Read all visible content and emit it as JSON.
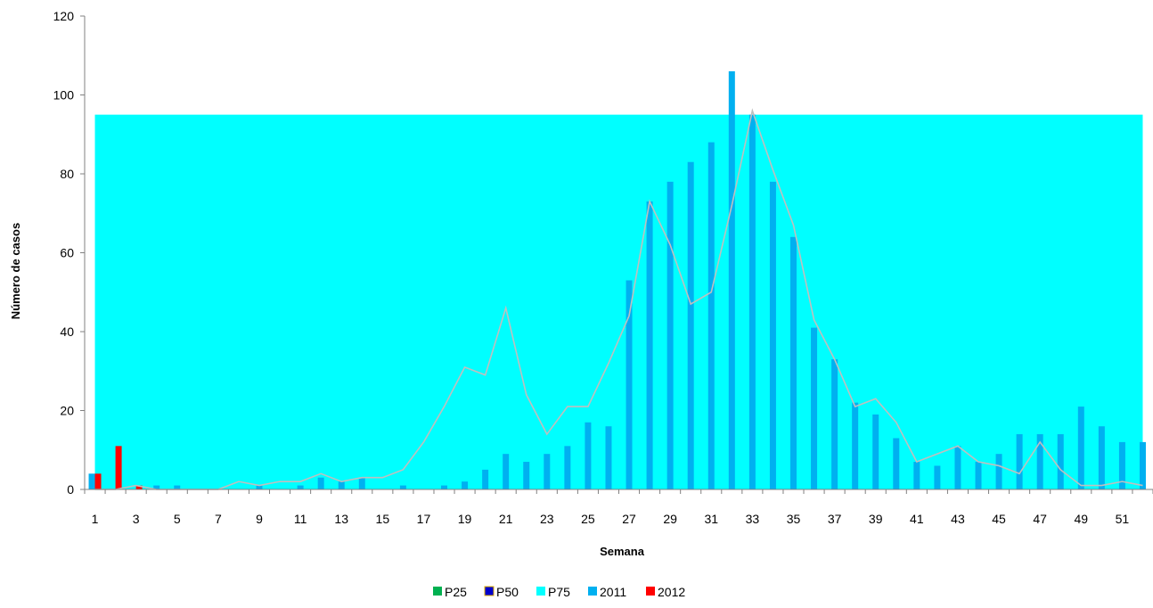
{
  "chart_data": {
    "type": "bar",
    "title": "",
    "xlabel": "Semana",
    "ylabel": "Número de casos",
    "ylim": [
      0,
      120
    ],
    "yticks": [
      0,
      20,
      40,
      60,
      80,
      100,
      120
    ],
    "x": [
      1,
      2,
      3,
      4,
      5,
      6,
      7,
      8,
      9,
      10,
      11,
      12,
      13,
      14,
      15,
      16,
      17,
      18,
      19,
      20,
      21,
      22,
      23,
      24,
      25,
      26,
      27,
      28,
      29,
      30,
      31,
      32,
      33,
      34,
      35,
      36,
      37,
      38,
      39,
      40,
      41,
      42,
      43,
      44,
      45,
      46,
      47,
      48,
      49,
      50,
      51,
      52
    ],
    "xtick_labels": [
      "1",
      "3",
      "5",
      "7",
      "9",
      "11",
      "13",
      "15",
      "17",
      "19",
      "21",
      "23",
      "25",
      "27",
      "29",
      "31",
      "33",
      "35",
      "37",
      "39",
      "41",
      "43",
      "45",
      "47",
      "49",
      "51"
    ],
    "grid": false,
    "legend_position": "bottom",
    "colors": {
      "P25": "#00B050",
      "P50": "#0000CC",
      "P75": "#00FFFF",
      "2011": "#00B0F0",
      "2012": "#FF0000",
      "line": "#BFBFBF"
    },
    "series": [
      {
        "name": "P25",
        "kind": "area",
        "values": [
          0,
          0,
          0,
          0,
          0,
          0,
          0,
          0,
          0,
          0,
          0,
          0,
          0,
          0,
          0,
          0,
          0,
          0,
          0,
          0,
          0,
          0,
          0,
          0,
          0,
          0,
          0,
          0,
          0,
          0,
          0,
          0,
          0,
          0,
          0,
          0,
          0,
          0,
          0,
          0,
          0,
          0,
          0,
          0,
          0,
          0,
          0,
          0,
          0,
          0,
          0,
          0
        ]
      },
      {
        "name": "P50",
        "kind": "area",
        "values": [
          0,
          0,
          0,
          0,
          0,
          0,
          0,
          0,
          0,
          0,
          0,
          0,
          0,
          0,
          0,
          0,
          0,
          0,
          0,
          0,
          0,
          0,
          0,
          0,
          0,
          0,
          0,
          0,
          0,
          0,
          0,
          0,
          0,
          0,
          0,
          0,
          0,
          0,
          0,
          0,
          0,
          0,
          0,
          0,
          0,
          0,
          0,
          0,
          0,
          0,
          0,
          0
        ]
      },
      {
        "name": "P75",
        "kind": "area",
        "values": [
          95,
          95,
          95,
          95,
          95,
          95,
          95,
          95,
          95,
          95,
          95,
          95,
          95,
          95,
          95,
          95,
          95,
          95,
          95,
          95,
          95,
          95,
          95,
          95,
          95,
          95,
          95,
          95,
          95,
          95,
          95,
          95,
          95,
          95,
          95,
          95,
          95,
          95,
          95,
          95,
          95,
          95,
          95,
          95,
          95,
          95,
          95,
          95,
          95,
          95,
          95,
          95
        ]
      },
      {
        "name": "2011",
        "kind": "bar",
        "values": [
          4,
          0,
          0,
          1,
          1,
          0,
          0,
          0,
          1,
          0,
          1,
          3,
          2,
          3,
          0,
          1,
          0,
          1,
          2,
          5,
          9,
          7,
          9,
          11,
          17,
          16,
          53,
          73,
          78,
          83,
          88,
          106,
          95,
          78,
          64,
          41,
          33,
          22,
          19,
          13,
          7,
          6,
          11,
          7,
          9,
          14,
          14,
          14,
          21,
          16,
          12,
          12
        ]
      },
      {
        "name": "2012",
        "kind": "bar",
        "values": [
          4,
          11,
          1,
          0,
          0,
          0,
          0,
          0,
          0,
          0,
          0,
          0,
          0,
          0,
          0,
          0,
          0,
          0,
          0,
          0,
          0,
          0,
          0,
          0,
          0,
          0,
          0,
          0,
          0,
          0,
          0,
          0,
          0,
          0,
          0,
          0,
          0,
          0,
          0,
          0,
          0,
          0,
          0,
          0,
          0,
          0,
          0,
          0,
          0,
          0,
          0,
          0
        ]
      },
      {
        "name": "",
        "kind": "line",
        "values": [
          0,
          0,
          1,
          0,
          0,
          0,
          0,
          2,
          1,
          2,
          2,
          4,
          2,
          3,
          3,
          5,
          12,
          21,
          31,
          29,
          46,
          24,
          14,
          21,
          21,
          32,
          44,
          73,
          62,
          47,
          50,
          72,
          96,
          81,
          67,
          43,
          33,
          21,
          23,
          17,
          7,
          9,
          11,
          7,
          6,
          4,
          12,
          5,
          1,
          1,
          2,
          1
        ]
      }
    ],
    "legend": [
      "P25",
      "P50",
      "P75",
      "2011",
      "2012"
    ]
  }
}
